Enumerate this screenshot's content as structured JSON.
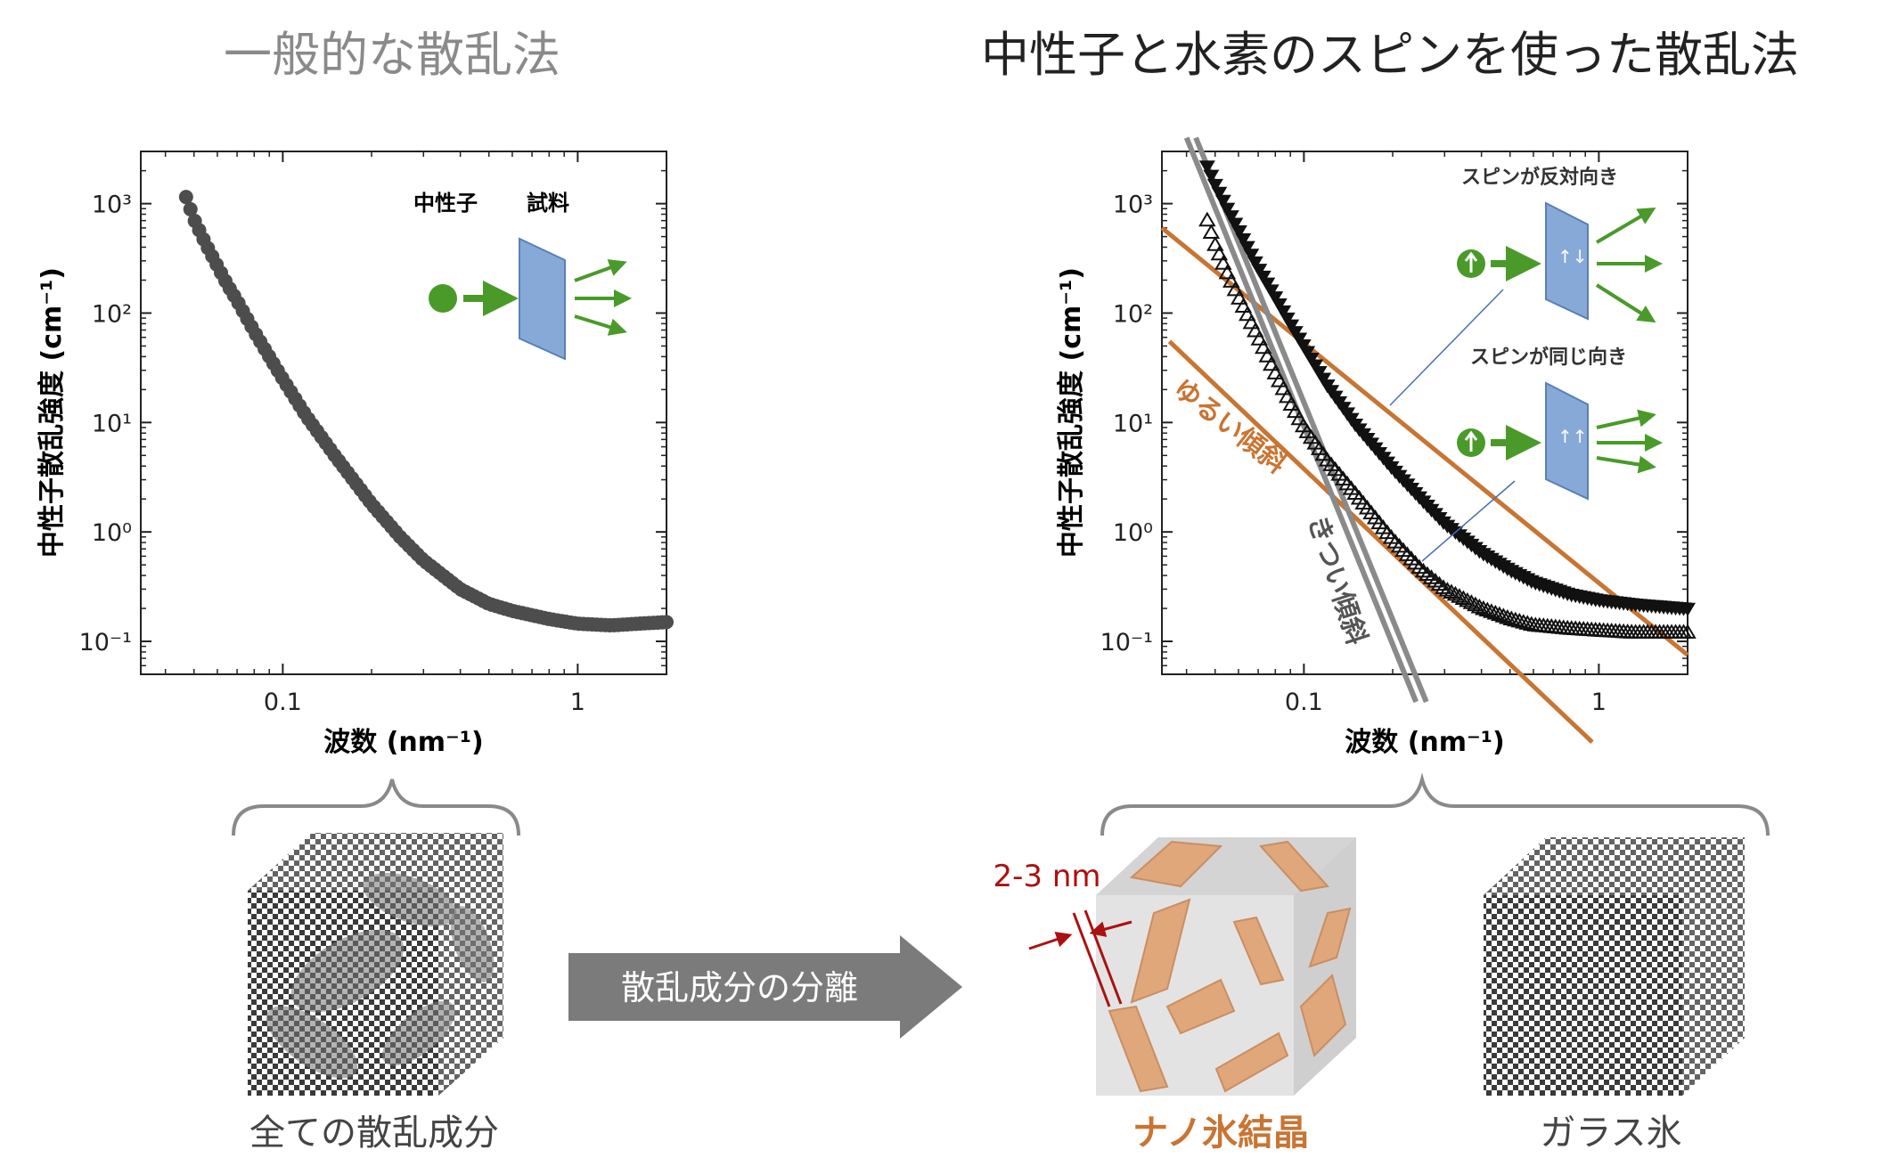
{
  "titles": {
    "left": "一般的な散乱法",
    "right": "中性子と水素のスピンを使った散乱法"
  },
  "colors": {
    "orange": "#c87533",
    "green": "#4a9a2a",
    "dark_marker": "#4d4d4d",
    "red_label": "#aa1111",
    "gray_line": "#8a8a8a",
    "arrow_gray": "#7b7b7b"
  },
  "chart_data": [
    {
      "type": "scatter",
      "log_x": true,
      "log_y": true,
      "xlabel": "波数 (nm⁻¹)",
      "ylabel": "中性子散乱強度 (cm⁻¹)",
      "xlim": [
        0.033,
        2.0
      ],
      "ylim": [
        0.05,
        3000
      ],
      "x_ticks": [
        "0.1",
        "1"
      ],
      "y_ticks": [
        "10⁻¹",
        "10⁰",
        "10¹",
        "10²",
        "10³"
      ],
      "inset_labels": {
        "neutron": "中性子",
        "sample": "試料"
      },
      "series": [
        {
          "marker": "filled-circle",
          "x": [
            0.047,
            0.05,
            0.055,
            0.06,
            0.065,
            0.07,
            0.08,
            0.09,
            0.1,
            0.12,
            0.15,
            0.2,
            0.25,
            0.3,
            0.4,
            0.5,
            0.6,
            0.8,
            1.0,
            1.3,
            1.6,
            2.0
          ],
          "y": [
            1150,
            720,
            420,
            270,
            180,
            130,
            68,
            40,
            25,
            11.5,
            5.0,
            1.8,
            0.9,
            0.55,
            0.3,
            0.22,
            0.19,
            0.16,
            0.145,
            0.14,
            0.145,
            0.15
          ]
        }
      ]
    },
    {
      "type": "scatter",
      "log_x": true,
      "log_y": true,
      "xlabel": "波数 (nm⁻¹)",
      "ylabel": "中性子散乱強度 (cm⁻¹)",
      "xlim": [
        0.033,
        2.0
      ],
      "ylim": [
        0.05,
        3000
      ],
      "x_ticks": [
        "0.1",
        "1"
      ],
      "y_ticks": [
        "10⁻¹",
        "10⁰",
        "10¹",
        "10²",
        "10³"
      ],
      "inset_labels": {
        "opposite": "スピンが反対向き",
        "same": "スピンが同じ向き"
      },
      "annotations": {
        "gentle": "ゆるい傾斜",
        "steep": "きつい傾斜"
      },
      "series": [
        {
          "marker": "filled-triangle-down",
          "x": [
            0.047,
            0.05,
            0.055,
            0.06,
            0.065,
            0.07,
            0.08,
            0.09,
            0.1,
            0.12,
            0.15,
            0.2,
            0.25,
            0.3,
            0.4,
            0.5,
            0.6,
            0.8,
            1.0,
            1.3,
            1.6,
            2.0
          ],
          "y": [
            2200,
            1500,
            900,
            580,
            380,
            260,
            140,
            80,
            50,
            22,
            9.5,
            3.8,
            2.0,
            1.2,
            0.65,
            0.45,
            0.35,
            0.27,
            0.24,
            0.22,
            0.21,
            0.2
          ]
        },
        {
          "marker": "open-triangle-up",
          "x": [
            0.047,
            0.05,
            0.055,
            0.06,
            0.065,
            0.07,
            0.08,
            0.09,
            0.1,
            0.12,
            0.15,
            0.2,
            0.25,
            0.3,
            0.4,
            0.5,
            0.6,
            0.8,
            1.0,
            1.3,
            1.6,
            2.0
          ],
          "y": [
            700,
            420,
            230,
            140,
            90,
            60,
            28,
            15,
            9,
            4.5,
            2.2,
            0.85,
            0.45,
            0.3,
            0.2,
            0.16,
            0.14,
            0.13,
            0.125,
            0.12,
            0.12,
            0.12
          ]
        }
      ],
      "fit_lines": [
        {
          "name": "gentle-upper",
          "color": "orange",
          "x": [
            0.033,
            2.0
          ],
          "y": [
            600,
            0.075
          ]
        },
        {
          "name": "gentle-lower",
          "color": "orange",
          "x": [
            0.035,
            0.95
          ],
          "y": [
            55,
            0.012
          ]
        },
        {
          "name": "steep-1",
          "color": "gray",
          "x": [
            0.04,
            0.24
          ],
          "y": [
            4000,
            0.028
          ]
        },
        {
          "name": "steep-2",
          "color": "gray",
          "x": [
            0.043,
            0.26
          ],
          "y": [
            4000,
            0.028
          ]
        }
      ]
    }
  ],
  "bottom": {
    "all_components": "全ての散乱成分",
    "separation_arrow": "散乱成分の分離",
    "nano_ice": "ナノ氷結晶",
    "glass_ice": "ガラス氷",
    "size_label": "2-3 nm"
  }
}
